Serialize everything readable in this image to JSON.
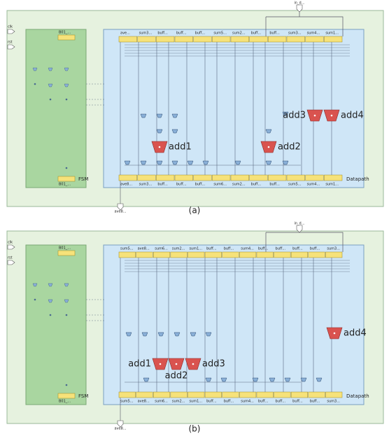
{
  "panels": [
    {
      "caption": "(a)",
      "input_label": "in_d...",
      "clk_label": "clk",
      "rst_label": "rst",
      "fsm_reg_top": "B01_...",
      "fsm_reg_bottom": "B01_...",
      "fsm_label": "FSM",
      "datapath_label": "Datapath",
      "output_label": "ave8...",
      "top_registers": [
        "ave...",
        "sum3...",
        "buff...",
        "buff...",
        "buff...",
        "sum5...",
        "sum2...",
        "buff...",
        "buff...",
        "sum3...",
        "sum4...",
        "sum1..."
      ],
      "bottom_registers": [
        "ave8...",
        "sum3...",
        "buff...",
        "buff...",
        "buff...",
        "sum6...",
        "sum2...",
        "buff...",
        "buff...",
        "sum5...",
        "sum4...",
        "sum1..."
      ],
      "adders": [
        "add1",
        "add2",
        "add3",
        "add4"
      ]
    },
    {
      "caption": "(b)",
      "input_label": "in_d...",
      "clk_label": "clk",
      "rst_label": "rst",
      "fsm_reg_top": "B01_...",
      "fsm_reg_bottom": "B01_...",
      "fsm_label": "FSM",
      "datapath_label": "Datapath",
      "output_label": "ave8...",
      "top_registers": [
        "sum5...",
        "ave8...",
        "sum6...",
        "sum2...",
        "sum1...",
        "buff...",
        "buff...",
        "sum4...",
        "buff...",
        "buff...",
        "buff...",
        "buff...",
        "sum3..."
      ],
      "bottom_registers": [
        "sum5...",
        "ave8...",
        "sum6...",
        "sum2...",
        "sum1...",
        "buff...",
        "buff...",
        "sum4...",
        "buff...",
        "buff...",
        "buff...",
        "buff...",
        "sum3..."
      ],
      "adders": [
        "add1",
        "add2",
        "add3",
        "add4"
      ]
    }
  ]
}
